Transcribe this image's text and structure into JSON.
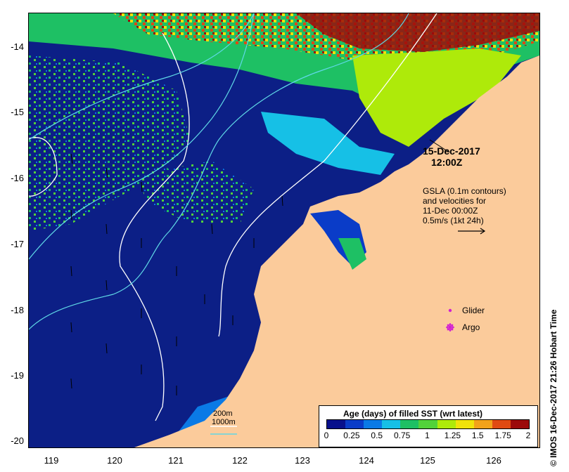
{
  "map": {
    "latitude_labels": [
      "-14",
      "-15",
      "-16",
      "-17",
      "-18",
      "-19",
      "-20"
    ],
    "longitude_labels": [
      "119",
      "120",
      "121",
      "122",
      "123",
      "124",
      "125",
      "126"
    ],
    "timestamp_line1": "15-Dec-2017",
    "timestamp_line2": "12:00Z",
    "gsla_line1": "GSLA (0.1m contours)",
    "gsla_line2": "and velocities for",
    "gsla_line3": "11-Dec 00:00Z",
    "gsla_line4": "0.5m/s (1kt 24h)",
    "legend_glider": "Glider",
    "legend_argo": "Argo",
    "depth_200": "200m",
    "depth_1000": "1000m",
    "colorbar_title": "Age (days) of filled SST (wrt latest)",
    "colorbar_ticks": [
      "0",
      "0.25",
      "0.5",
      "0.75",
      "1",
      "1.25",
      "1.5",
      "1.75",
      "2"
    ],
    "credit": "© IMOS 16-Dec-2017 21:26 Hobart Time"
  },
  "colors": {
    "land": "#fbcb9b",
    "sea_base": "#0c1f86",
    "glider_marker": "#d21fd2",
    "argo_marker": "#d21fd2",
    "contour_200": "#ffffff",
    "contour_1000": "#5fd8e6",
    "colormap": [
      "#08108c",
      "#0a3cc8",
      "#0a7ae6",
      "#16c0e6",
      "#1ec064",
      "#52d23a",
      "#aeea0a",
      "#f0e20a",
      "#f2a21a",
      "#e04a12",
      "#9c0a0a"
    ]
  }
}
